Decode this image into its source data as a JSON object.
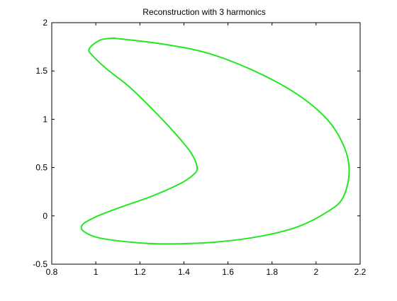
{
  "chart_data": {
    "type": "line",
    "title": "Reconstruction with 3 harmonics",
    "xlabel": "",
    "ylabel": "",
    "xlim": [
      0.8,
      2.2
    ],
    "ylim": [
      -0.5,
      2
    ],
    "x_ticks": [
      "0.8",
      "1",
      "1.2",
      "1.4",
      "1.6",
      "1.8",
      "2",
      "2.2"
    ],
    "y_ticks": [
      "-0.5",
      "0",
      "0.5",
      "1",
      "1.5",
      "2"
    ],
    "grid": false,
    "legend": "none",
    "series": [
      {
        "color": "#22e822",
        "closed": true,
        "x": [
          1.08,
          1.02,
          0.97,
          0.985,
          1.05,
          1.15,
          1.25,
          1.35,
          1.43,
          1.46,
          1.44,
          1.38,
          1.25,
          1.1,
          1.0,
          0.94,
          0.945,
          1.02,
          1.2,
          1.35,
          1.55,
          1.75,
          1.92,
          2.05,
          2.12,
          2.15,
          2.13,
          2.05,
          1.9,
          1.7,
          1.5,
          1.3,
          1.1,
          1.08
        ],
        "y": [
          1.84,
          1.82,
          1.73,
          1.66,
          1.52,
          1.34,
          1.12,
          0.88,
          0.66,
          0.5,
          0.42,
          0.33,
          0.2,
          0.08,
          -0.01,
          -0.09,
          -0.16,
          -0.23,
          -0.28,
          -0.29,
          -0.27,
          -0.21,
          -0.11,
          0.04,
          0.18,
          0.44,
          0.7,
          1.0,
          1.28,
          1.52,
          1.69,
          1.78,
          1.835,
          1.84
        ]
      }
    ]
  }
}
